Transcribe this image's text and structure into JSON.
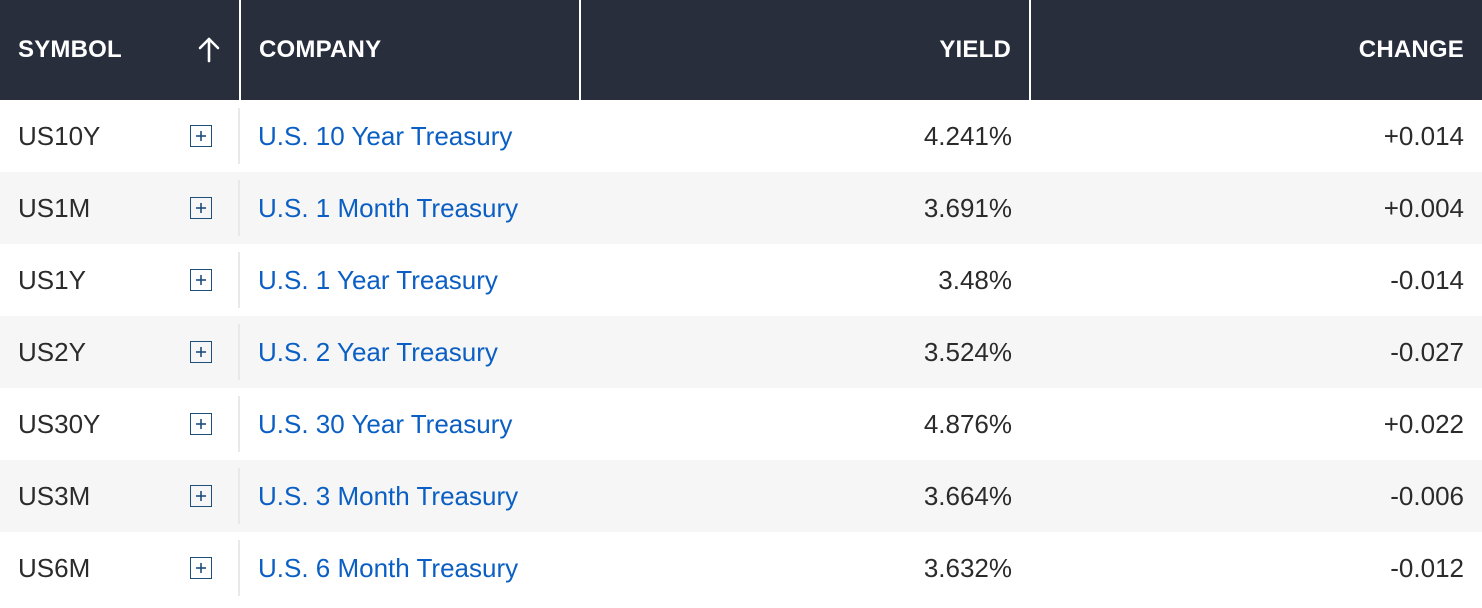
{
  "header": {
    "symbol": "SYMBOL",
    "company": "COMPANY",
    "yield": "YIELD",
    "change": "CHANGE"
  },
  "sort": {
    "column": "symbol",
    "direction": "ascending",
    "icon": "arrow-up-icon"
  },
  "colors": {
    "header_bg": "#292e3d",
    "link": "#0b5fc4",
    "positive": "#1d7a32",
    "negative": "#d42d2d"
  },
  "rows": [
    {
      "symbol": "US10Y",
      "company": "U.S. 10 Year Treasury",
      "yield": "4.241%",
      "change": "+0.014",
      "direction": "pos"
    },
    {
      "symbol": "US1M",
      "company": "U.S. 1 Month Treasury",
      "yield": "3.691%",
      "change": "+0.004",
      "direction": "pos"
    },
    {
      "symbol": "US1Y",
      "company": "U.S. 1 Year Treasury",
      "yield": "3.48%",
      "change": "-0.014",
      "direction": "neg"
    },
    {
      "symbol": "US2Y",
      "company": "U.S. 2 Year Treasury",
      "yield": "3.524%",
      "change": "-0.027",
      "direction": "neg"
    },
    {
      "symbol": "US30Y",
      "company": "U.S. 30 Year Treasury",
      "yield": "4.876%",
      "change": "+0.022",
      "direction": "pos"
    },
    {
      "symbol": "US3M",
      "company": "U.S. 3 Month Treasury",
      "yield": "3.664%",
      "change": "-0.006",
      "direction": "neg"
    },
    {
      "symbol": "US6M",
      "company": "U.S. 6 Month Treasury",
      "yield": "3.632%",
      "change": "-0.012",
      "direction": "neg"
    }
  ]
}
